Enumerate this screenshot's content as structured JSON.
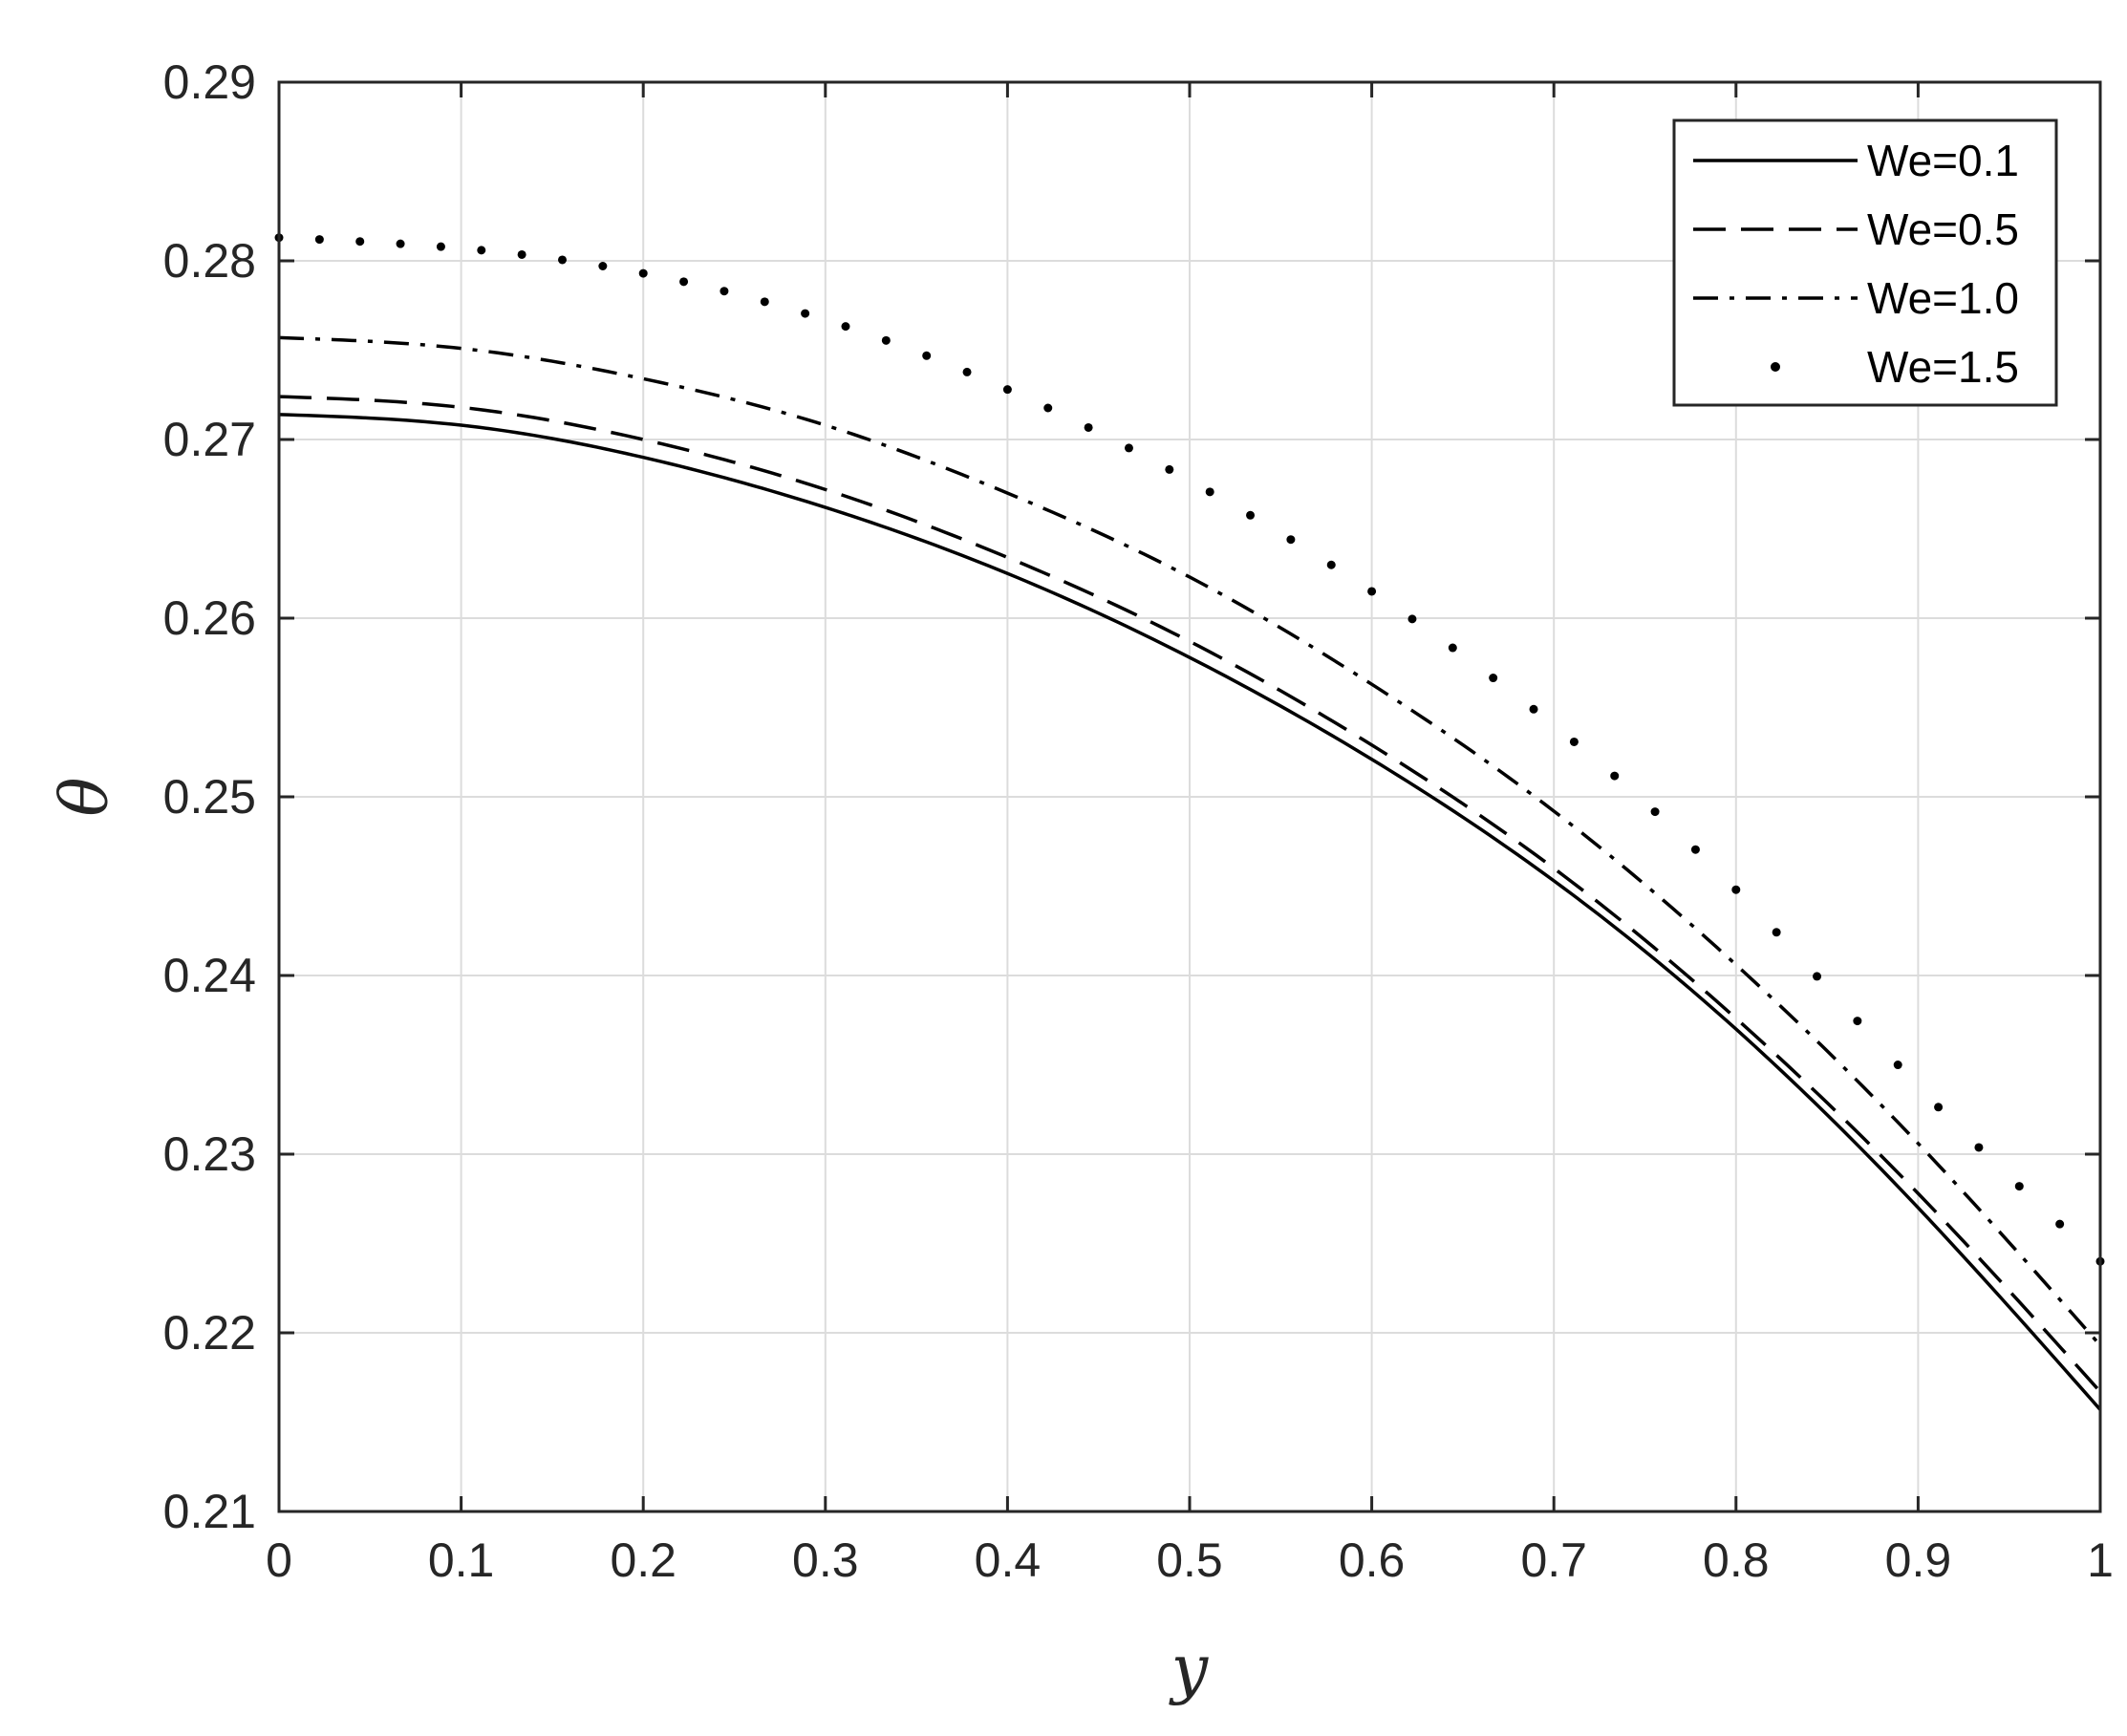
{
  "chart_data": {
    "type": "line",
    "title": "",
    "xlabel": "y",
    "ylabel": "θ",
    "xlim": [
      0,
      1
    ],
    "ylim": [
      0.21,
      0.29
    ],
    "xticks": [
      "0",
      "0.1",
      "0.2",
      "0.3",
      "0.4",
      "0.5",
      "0.6",
      "0.7",
      "0.8",
      "0.9",
      "1"
    ],
    "yticks": [
      "0.21",
      "0.22",
      "0.23",
      "0.24",
      "0.25",
      "0.26",
      "0.27",
      "0.28",
      "0.29"
    ],
    "grid": true,
    "legend_position": "top-right",
    "x": [
      0,
      0.1,
      0.2,
      0.3,
      0.4,
      0.5,
      0.6,
      0.7,
      0.8,
      0.9,
      1.0
    ],
    "series": [
      {
        "name": "We=0.1",
        "style": "solid",
        "values": [
          0.2714,
          0.2708,
          0.269,
          0.2662,
          0.2625,
          0.2578,
          0.2521,
          0.2453,
          0.237,
          0.227,
          0.2157
        ]
      },
      {
        "name": "We=0.5",
        "style": "dashed",
        "values": [
          0.2724,
          0.2718,
          0.27,
          0.2672,
          0.2634,
          0.2587,
          0.2529,
          0.246,
          0.2376,
          0.2278,
          0.2167
        ]
      },
      {
        "name": "We=1.0",
        "style": "dashdot",
        "values": [
          0.2757,
          0.2751,
          0.2734,
          0.2708,
          0.267,
          0.2623,
          0.2563,
          0.2492,
          0.2406,
          0.2306,
          0.2193
        ]
      },
      {
        "name": "We=1.5",
        "style": "dotted",
        "values": [
          0.2813,
          0.2807,
          0.2793,
          0.2767,
          0.2728,
          0.2677,
          0.2615,
          0.254,
          0.2448,
          0.2338,
          0.224
        ]
      }
    ]
  }
}
